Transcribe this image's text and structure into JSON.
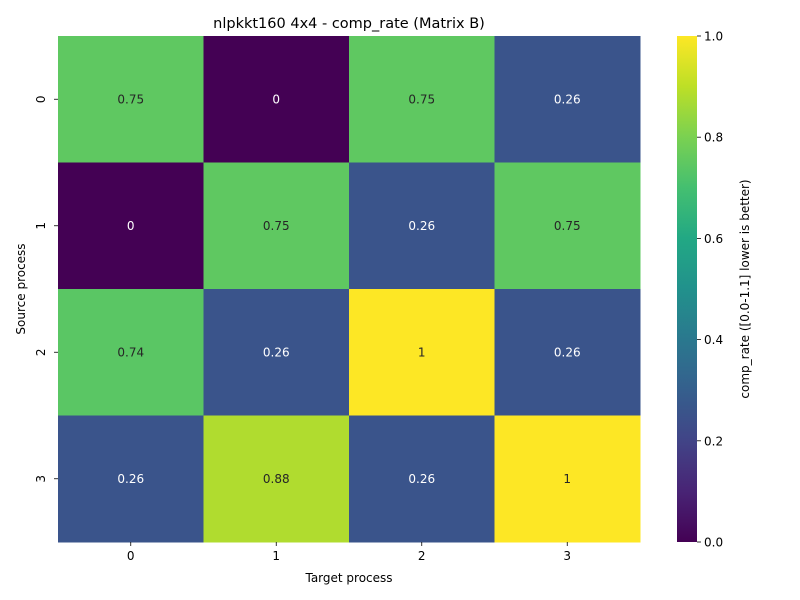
{
  "chart_data": {
    "type": "heatmap",
    "title": "nlpkkt160 4x4 - comp_rate (Matrix B)",
    "xlabel": "Target process",
    "ylabel": "Source process",
    "x_categories": [
      "0",
      "1",
      "2",
      "3"
    ],
    "y_categories": [
      "0",
      "1",
      "2",
      "3"
    ],
    "values": [
      [
        0.75,
        0,
        0.75,
        0.26
      ],
      [
        0,
        0.75,
        0.26,
        0.75
      ],
      [
        0.74,
        0.26,
        1,
        0.26
      ],
      [
        0.26,
        0.88,
        0.26,
        1
      ]
    ],
    "value_labels": [
      [
        "0.75",
        "0",
        "0.75",
        "0.26"
      ],
      [
        "0",
        "0.75",
        "0.26",
        "0.75"
      ],
      [
        "0.74",
        "0.26",
        "1",
        "0.26"
      ],
      [
        "0.26",
        "0.88",
        "0.26",
        "1"
      ]
    ],
    "colorbar": {
      "label": "comp_rate ([0.0-1.1] lower is better)",
      "range": [
        0,
        1
      ],
      "ticks": [
        0,
        0.2,
        0.4,
        0.6,
        0.8,
        1
      ],
      "tick_labels": [
        "0.0",
        "0.2",
        "0.4",
        "0.6",
        "0.8",
        "1.0"
      ],
      "colormap": "viridis"
    }
  }
}
